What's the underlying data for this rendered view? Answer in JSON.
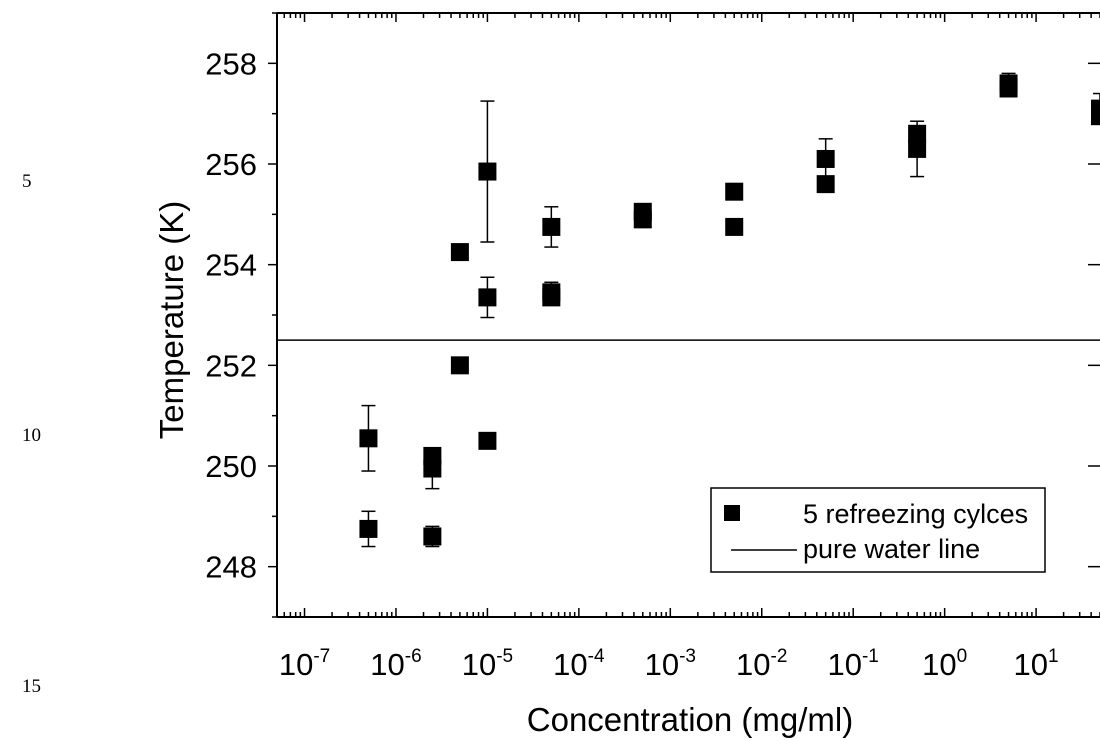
{
  "line_numbers": [
    "5",
    "10",
    "15"
  ],
  "chart_data": {
    "type": "scatter",
    "title": "",
    "xlabel": "Concentration (mg/ml)",
    "ylabel": "Temperature (K)",
    "x_scale": "log",
    "xlim": [
      5e-08,
      50
    ],
    "ylim": [
      247,
      259
    ],
    "x_ticks": [
      1e-07,
      1e-06,
      1e-05,
      0.0001,
      0.001,
      0.01,
      0.1,
      1,
      10
    ],
    "x_tick_labels": [
      {
        "base": "10",
        "exp": "-7"
      },
      {
        "base": "10",
        "exp": "-6"
      },
      {
        "base": "10",
        "exp": "-5"
      },
      {
        "base": "10",
        "exp": "-4"
      },
      {
        "base": "10",
        "exp": "-3"
      },
      {
        "base": "10",
        "exp": "-2"
      },
      {
        "base": "10",
        "exp": "-1"
      },
      {
        "base": "10",
        "exp": "0"
      },
      {
        "base": "10",
        "exp": "1"
      }
    ],
    "y_ticks": [
      248,
      250,
      252,
      254,
      256,
      258
    ],
    "y_tick_labels": [
      "248",
      "250",
      "252",
      "254",
      "256",
      "258"
    ],
    "marker_color": "#000000",
    "legend_position": "bottom-right",
    "grid": false,
    "series": [
      {
        "name": "5 refreezing cylces",
        "marker": "square",
        "points": [
          {
            "x": 5e-07,
            "y": 250.55,
            "err": 0.65
          },
          {
            "x": 5e-07,
            "y": 248.75,
            "err": 0.35
          },
          {
            "x": 2.5e-06,
            "y": 250.2,
            "err": 0.0
          },
          {
            "x": 2.5e-06,
            "y": 249.95,
            "err": 0.4
          },
          {
            "x": 2.5e-06,
            "y": 248.6,
            "err": 0.2
          },
          {
            "x": 5e-06,
            "y": 254.25,
            "err": 0.0
          },
          {
            "x": 5e-06,
            "y": 252.0,
            "err": 0.1
          },
          {
            "x": 1e-05,
            "y": 255.85,
            "err": 1.4
          },
          {
            "x": 1e-05,
            "y": 253.35,
            "err": 0.4
          },
          {
            "x": 1e-05,
            "y": 250.5,
            "err": 0.0
          },
          {
            "x": 5e-05,
            "y": 254.75,
            "err": 0.4
          },
          {
            "x": 5e-05,
            "y": 253.45,
            "err": 0.2
          },
          {
            "x": 5e-05,
            "y": 253.35,
            "err": 0.0
          },
          {
            "x": 0.0005,
            "y": 255.05,
            "err": 0.0
          },
          {
            "x": 0.0005,
            "y": 254.9,
            "err": 0.0
          },
          {
            "x": 0.005,
            "y": 255.45,
            "err": 0.0
          },
          {
            "x": 0.005,
            "y": 254.75,
            "err": 0.0
          },
          {
            "x": 0.05,
            "y": 256.1,
            "err": 0.4
          },
          {
            "x": 0.05,
            "y": 255.6,
            "err": 0.0
          },
          {
            "x": 0.5,
            "y": 256.6,
            "err": 0.0
          },
          {
            "x": 0.5,
            "y": 256.3,
            "err": 0.55
          },
          {
            "x": 5,
            "y": 257.6,
            "err": 0.2
          },
          {
            "x": 5,
            "y": 257.5,
            "err": 0.0
          },
          {
            "x": 50,
            "y": 257.1,
            "err": 0.3
          },
          {
            "x": 50,
            "y": 256.95,
            "err": 0.0
          }
        ]
      },
      {
        "name": "pure water line",
        "type": "hline",
        "y": 252.5
      }
    ]
  }
}
